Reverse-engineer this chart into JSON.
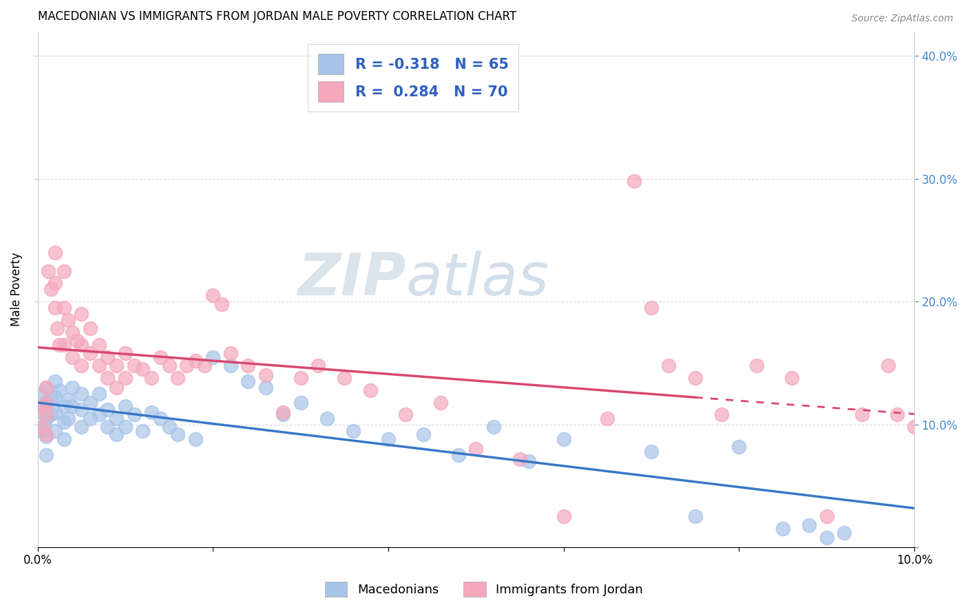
{
  "title": "MACEDONIAN VS IMMIGRANTS FROM JORDAN MALE POVERTY CORRELATION CHART",
  "source": "Source: ZipAtlas.com",
  "ylabel": "Male Poverty",
  "xlim": [
    0.0,
    0.1
  ],
  "ylim": [
    0.0,
    0.42
  ],
  "x_tick_positions": [
    0.0,
    0.02,
    0.04,
    0.06,
    0.08,
    0.1
  ],
  "x_tick_labels": [
    "0.0%",
    "",
    "",
    "",
    "",
    "10.0%"
  ],
  "y_tick_positions": [
    0.0,
    0.1,
    0.2,
    0.3,
    0.4
  ],
  "y_tick_labels_right": [
    "",
    "10.0%",
    "20.0%",
    "30.0%",
    "40.0%"
  ],
  "macedonian_color": "#a8c4e8",
  "jordan_color": "#f4a8bc",
  "macedonian_scatter": {
    "x": [
      0.0005,
      0.0005,
      0.0005,
      0.0008,
      0.0008,
      0.001,
      0.001,
      0.001,
      0.001,
      0.001,
      0.0015,
      0.0015,
      0.002,
      0.002,
      0.002,
      0.002,
      0.0025,
      0.003,
      0.003,
      0.003,
      0.0035,
      0.0035,
      0.004,
      0.004,
      0.005,
      0.005,
      0.005,
      0.006,
      0.006,
      0.007,
      0.007,
      0.008,
      0.008,
      0.009,
      0.009,
      0.01,
      0.01,
      0.011,
      0.012,
      0.013,
      0.014,
      0.015,
      0.016,
      0.018,
      0.02,
      0.022,
      0.024,
      0.026,
      0.028,
      0.03,
      0.033,
      0.036,
      0.04,
      0.044,
      0.048,
      0.052,
      0.056,
      0.06,
      0.07,
      0.075,
      0.08,
      0.085,
      0.088,
      0.09,
      0.092
    ],
    "y": [
      0.125,
      0.11,
      0.095,
      0.115,
      0.1,
      0.13,
      0.118,
      0.105,
      0.09,
      0.075,
      0.12,
      0.108,
      0.135,
      0.122,
      0.11,
      0.095,
      0.128,
      0.115,
      0.102,
      0.088,
      0.12,
      0.105,
      0.13,
      0.115,
      0.125,
      0.112,
      0.098,
      0.118,
      0.105,
      0.125,
      0.108,
      0.112,
      0.098,
      0.105,
      0.092,
      0.115,
      0.098,
      0.108,
      0.095,
      0.11,
      0.105,
      0.098,
      0.092,
      0.088,
      0.155,
      0.148,
      0.135,
      0.13,
      0.108,
      0.118,
      0.105,
      0.095,
      0.088,
      0.092,
      0.075,
      0.098,
      0.07,
      0.088,
      0.078,
      0.025,
      0.082,
      0.015,
      0.018,
      0.008,
      0.012
    ]
  },
  "jordan_scatter": {
    "x": [
      0.0005,
      0.0005,
      0.001,
      0.001,
      0.001,
      0.001,
      0.0012,
      0.0015,
      0.002,
      0.002,
      0.002,
      0.0022,
      0.0025,
      0.003,
      0.003,
      0.003,
      0.0035,
      0.004,
      0.004,
      0.0045,
      0.005,
      0.005,
      0.005,
      0.006,
      0.006,
      0.007,
      0.007,
      0.008,
      0.008,
      0.009,
      0.009,
      0.01,
      0.01,
      0.011,
      0.012,
      0.013,
      0.014,
      0.015,
      0.016,
      0.017,
      0.018,
      0.019,
      0.02,
      0.021,
      0.022,
      0.024,
      0.026,
      0.028,
      0.03,
      0.032,
      0.035,
      0.038,
      0.042,
      0.046,
      0.05,
      0.055,
      0.06,
      0.065,
      0.068,
      0.07,
      0.072,
      0.075,
      0.078,
      0.082,
      0.086,
      0.09,
      0.094,
      0.097,
      0.098,
      0.1
    ],
    "y": [
      0.115,
      0.098,
      0.13,
      0.118,
      0.108,
      0.092,
      0.225,
      0.21,
      0.24,
      0.215,
      0.195,
      0.178,
      0.165,
      0.225,
      0.195,
      0.165,
      0.185,
      0.175,
      0.155,
      0.168,
      0.19,
      0.165,
      0.148,
      0.178,
      0.158,
      0.165,
      0.148,
      0.155,
      0.138,
      0.148,
      0.13,
      0.158,
      0.138,
      0.148,
      0.145,
      0.138,
      0.155,
      0.148,
      0.138,
      0.148,
      0.152,
      0.148,
      0.205,
      0.198,
      0.158,
      0.148,
      0.14,
      0.11,
      0.138,
      0.148,
      0.138,
      0.128,
      0.108,
      0.118,
      0.08,
      0.072,
      0.025,
      0.105,
      0.298,
      0.195,
      0.148,
      0.138,
      0.108,
      0.148,
      0.138,
      0.025,
      0.108,
      0.148,
      0.108,
      0.098
    ]
  },
  "macedonian_R": -0.318,
  "macedonian_N": 65,
  "jordan_R": 0.284,
  "jordan_N": 70,
  "legend_color": "#3060c0",
  "trendline_macedonian_color": "#3878c8",
  "trendline_jordan_color": "#d84870",
  "trendline_jordan_dash_color": "#d84870",
  "watermark_ZIP_color": "#c8d4e0",
  "watermark_atlas_color": "#b8cce0",
  "background_color": "#ffffff",
  "grid_color": "#d8d8d8",
  "bottom_legend_items": [
    {
      "label": "Macedonians",
      "color": "#a8c4e8"
    },
    {
      "label": "Immigrants from Jordan",
      "color": "#f4a8bc"
    }
  ]
}
